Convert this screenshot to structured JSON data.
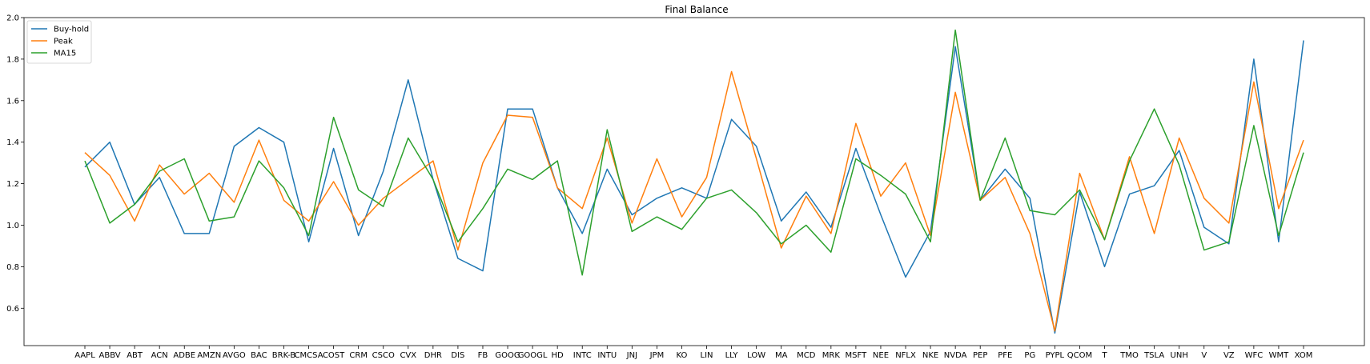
{
  "chart_data": {
    "type": "line",
    "title": "Final Balance",
    "xlabel": "",
    "ylabel": "",
    "ylim": [
      0.42,
      2.0
    ],
    "yticks": [
      0.6,
      0.8,
      1.0,
      1.2,
      1.4,
      1.6,
      1.8,
      2.0
    ],
    "ytick_labels": [
      "0.6",
      "0.8",
      "1.0",
      "1.2",
      "1.4",
      "1.6",
      "1.8",
      "2.0"
    ],
    "grid": false,
    "legend_position": "top-left",
    "categories": [
      "AAPL",
      "ABBV",
      "ABT",
      "ACN",
      "ADBE",
      "AMZN",
      "AVGO",
      "BAC",
      "BRK-B",
      "CMCSA",
      "COST",
      "CRM",
      "CSCO",
      "CVX",
      "DHR",
      "DIS",
      "FB",
      "GOOG",
      "GOOGL",
      "HD",
      "INTC",
      "INTU",
      "JNJ",
      "JPM",
      "KO",
      "LIN",
      "LLY",
      "LOW",
      "MA",
      "MCD",
      "MRK",
      "MSFT",
      "NEE",
      "NFLX",
      "NKE",
      "NVDA",
      "PEP",
      "PFE",
      "PG",
      "PYPL",
      "QCOM",
      "T",
      "TMO",
      "TSLA",
      "UNH",
      "V",
      "VZ",
      "WFC",
      "WMT",
      "XOM"
    ],
    "series": [
      {
        "name": "Buy-hold",
        "color": "#1f77b4",
        "values": [
          1.28,
          1.4,
          1.1,
          1.23,
          0.96,
          0.96,
          1.38,
          1.47,
          1.4,
          0.92,
          1.37,
          0.95,
          1.26,
          1.7,
          1.22,
          0.84,
          0.78,
          1.56,
          1.56,
          1.18,
          0.96,
          1.27,
          1.05,
          1.13,
          1.18,
          1.13,
          1.51,
          1.38,
          1.02,
          1.16,
          0.99,
          1.37,
          1.05,
          0.75,
          0.97,
          1.86,
          1.12,
          1.27,
          1.13,
          0.48,
          1.16,
          0.8,
          1.15,
          1.19,
          1.36,
          0.99,
          0.91,
          1.8,
          0.92,
          1.89
        ]
      },
      {
        "name": "Peak",
        "color": "#ff7f0e",
        "values": [
          1.35,
          1.24,
          1.02,
          1.29,
          1.15,
          1.25,
          1.11,
          1.41,
          1.12,
          1.02,
          1.21,
          1.0,
          1.13,
          1.22,
          1.31,
          0.88,
          1.3,
          1.53,
          1.52,
          1.18,
          1.08,
          1.42,
          1.01,
          1.32,
          1.04,
          1.23,
          1.74,
          1.32,
          0.89,
          1.14,
          0.96,
          1.49,
          1.14,
          1.3,
          0.95,
          1.64,
          1.12,
          1.23,
          0.96,
          0.49,
          1.25,
          0.93,
          1.33,
          0.96,
          1.42,
          1.13,
          1.01,
          1.69,
          1.08,
          1.41
        ]
      },
      {
        "name": "MA15",
        "color": "#2ca02c",
        "values": [
          1.31,
          1.01,
          1.1,
          1.26,
          1.32,
          1.02,
          1.04,
          1.31,
          1.18,
          0.95,
          1.52,
          1.17,
          1.09,
          1.42,
          1.22,
          0.92,
          1.08,
          1.27,
          1.22,
          1.31,
          0.76,
          1.46,
          0.97,
          1.04,
          0.98,
          1.13,
          1.17,
          1.06,
          0.91,
          1.0,
          0.87,
          1.32,
          1.24,
          1.15,
          0.92,
          1.94,
          1.12,
          1.42,
          1.07,
          1.05,
          1.17,
          0.93,
          1.31,
          1.56,
          1.29,
          0.88,
          0.92,
          1.48,
          0.95,
          1.35
        ]
      }
    ]
  }
}
